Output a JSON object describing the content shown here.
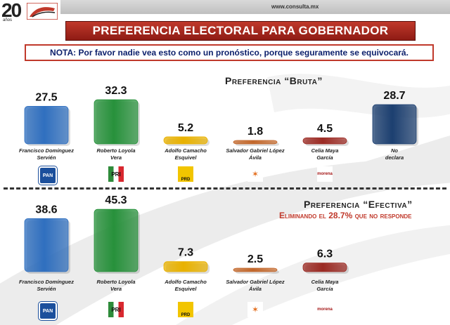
{
  "header": {
    "logo_text": "20",
    "logo_sub": "años",
    "url": "www.consulta.mx"
  },
  "title": "PREFERENCIA ELECTORAL PARA GOBERNADOR",
  "nota": "NOTA: Por favor nadie vea esto como un pronóstico, porque seguramente se equivocará.",
  "colors": {
    "pan": "#2f6fbf",
    "pri": "#27913b",
    "prd": "#e8b100",
    "mc": "#c2672b",
    "morena": "#9b2a23",
    "nodeclara": "#1c3f70",
    "accent": "#c0392b"
  },
  "chart_data": [
    {
      "type": "bar",
      "title": "Preferencia “Bruta”",
      "categories": [
        "Francisco Domínguez Servién",
        "Roberto Loyola Vera",
        "Adolfo Camacho Esquivel",
        "Salvador Gabriel López Ávila",
        "Celia Maya García",
        "No declara"
      ],
      "category_lines": [
        [
          "Francisco Domínguez",
          "Servién"
        ],
        [
          "Roberto Loyola",
          "Vera"
        ],
        [
          "Adolfo  Camacho",
          "Esquivel"
        ],
        [
          "Salvador Gabriel López",
          "Ávila"
        ],
        [
          "Celia Maya",
          "García"
        ],
        [
          "No",
          "declara"
        ]
      ],
      "labels": [
        "27.5",
        "32.3",
        "5.2",
        "1.8",
        "4.5",
        "28.7"
      ],
      "values": [
        27.5,
        32.3,
        5.2,
        1.8,
        4.5,
        28.7
      ],
      "parties": [
        "pan",
        "pri",
        "prd",
        "mc",
        "morena",
        "nodeclara"
      ]
    },
    {
      "type": "bar",
      "title": "Preferencia “Efectiva”",
      "subtitle": "Eliminando el 28.7% que no responde",
      "categories": [
        "Francisco Domínguez Servién",
        "Roberto Loyola Vera",
        "Adolfo Camacho Esquivel",
        "Salvador Gabriel López Ávila",
        "Celia Maya García"
      ],
      "category_lines": [
        [
          "Francisco Domínguez",
          "Servién"
        ],
        [
          "Roberto Loyola",
          "Vera"
        ],
        [
          "Adolfo  Camacho",
          "Esquivel"
        ],
        [
          "Salvador Gabriel López",
          "Ávila"
        ],
        [
          "Celia Maya",
          "García"
        ]
      ],
      "labels": [
        "38.6",
        "45.3",
        "7.3",
        "2.5",
        "6.3"
      ],
      "values": [
        38.6,
        45.3,
        7.3,
        2.5,
        6.3
      ],
      "parties": [
        "pan",
        "pri",
        "prd",
        "mc",
        "morena"
      ]
    }
  ],
  "party_logos": {
    "pan": {
      "icon": "pan-logo-icon",
      "text": "PAN"
    },
    "pri": {
      "icon": "pri-pvem-pt-logo-icon",
      "text": "PRI"
    },
    "prd": {
      "icon": "prd-logo-icon",
      "text": "PRD"
    },
    "mc": {
      "icon": "movimiento-ciudadano-logo-icon",
      "text": "MOVIMIENTO CIUDADANO"
    },
    "morena": {
      "icon": "morena-logo-icon",
      "text": "morena"
    }
  }
}
